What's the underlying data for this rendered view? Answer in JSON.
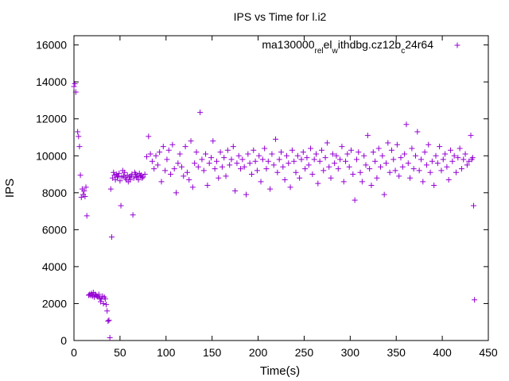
{
  "chart_data": {
    "type": "scatter",
    "title": "IPS vs Time for l.i2",
    "xlabel": "Time(s)",
    "ylabel": "IPS",
    "xlim": [
      0,
      450
    ],
    "ylim": [
      0,
      16500
    ],
    "xticks": [
      0,
      50,
      100,
      150,
      200,
      250,
      300,
      350,
      400,
      450
    ],
    "xtick_labels": [
      "0",
      "50",
      "100",
      "150",
      "200",
      "250",
      "300",
      "350",
      "400",
      "450"
    ],
    "yticks": [
      0,
      2000,
      4000,
      6000,
      8000,
      10000,
      12000,
      14000,
      16000
    ],
    "ytick_labels": [
      "0",
      "2000",
      "4000",
      "6000",
      "8000",
      "10000",
      "12000",
      "14000",
      "16000"
    ],
    "grid": false,
    "legend_position": "top-right",
    "marker": "+",
    "color": "#9400d3",
    "series": [
      {
        "name_parts": [
          {
            "text": "ma130000",
            "sub": false
          },
          {
            "text": "rel",
            "sub": true
          },
          {
            "text": "el",
            "sub": false
          },
          {
            "text": "w",
            "sub": true
          },
          {
            "text": "ithdbg.cz12b",
            "sub": false
          },
          {
            "text": "c",
            "sub": true
          },
          {
            "text": "24r64",
            "sub": false
          }
        ],
        "points": [
          [
            0,
            13750
          ],
          [
            1,
            13900
          ],
          [
            2,
            13450
          ],
          [
            4,
            11300
          ],
          [
            5,
            11050
          ],
          [
            6,
            10500
          ],
          [
            7,
            8950
          ],
          [
            8,
            7750
          ],
          [
            9,
            8200
          ],
          [
            10,
            7900
          ],
          [
            11,
            8100
          ],
          [
            12,
            7800
          ],
          [
            13,
            8300
          ],
          [
            14,
            6750
          ],
          [
            16,
            2450
          ],
          [
            17,
            2500
          ],
          [
            18,
            2450
          ],
          [
            19,
            2550
          ],
          [
            20,
            2400
          ],
          [
            21,
            2600
          ],
          [
            22,
            2350
          ],
          [
            23,
            2500
          ],
          [
            24,
            2450
          ],
          [
            25,
            2400
          ],
          [
            26,
            2350
          ],
          [
            27,
            2500
          ],
          [
            28,
            2300
          ],
          [
            29,
            2100
          ],
          [
            30,
            2250
          ],
          [
            31,
            2400
          ],
          [
            32,
            2000
          ],
          [
            33,
            2350
          ],
          [
            34,
            2250
          ],
          [
            35,
            1950
          ],
          [
            36,
            1600
          ],
          [
            37,
            1050
          ],
          [
            38,
            1100
          ],
          [
            39,
            150
          ],
          [
            40,
            8200
          ],
          [
            41,
            5600
          ],
          [
            42,
            8800
          ],
          [
            43,
            9100
          ],
          [
            44,
            8950
          ],
          [
            45,
            8700
          ],
          [
            46,
            9000
          ],
          [
            47,
            8850
          ],
          [
            48,
            8900
          ],
          [
            49,
            9050
          ],
          [
            50,
            8650
          ],
          [
            51,
            7300
          ],
          [
            52,
            8850
          ],
          [
            53,
            9200
          ],
          [
            54,
            8900
          ],
          [
            55,
            9100
          ],
          [
            56,
            8800
          ],
          [
            57,
            8700
          ],
          [
            58,
            8950
          ],
          [
            59,
            8600
          ],
          [
            60,
            8850
          ],
          [
            61,
            8700
          ],
          [
            62,
            8900
          ],
          [
            63,
            9000
          ],
          [
            64,
            6800
          ],
          [
            65,
            8800
          ],
          [
            66,
            9100
          ],
          [
            67,
            9000
          ],
          [
            68,
            8850
          ],
          [
            69,
            8900
          ],
          [
            70,
            8700
          ],
          [
            71,
            9050
          ],
          [
            72,
            8900
          ],
          [
            73,
            8950
          ],
          [
            74,
            8800
          ],
          [
            75,
            8850
          ],
          [
            77,
            9000
          ],
          [
            79,
            9950
          ],
          [
            81,
            11050
          ],
          [
            83,
            10100
          ],
          [
            85,
            9700
          ],
          [
            87,
            9300
          ],
          [
            89,
            10000
          ],
          [
            91,
            9500
          ],
          [
            93,
            10200
          ],
          [
            95,
            8600
          ],
          [
            97,
            10500
          ],
          [
            99,
            9200
          ],
          [
            101,
            9800
          ],
          [
            103,
            10300
          ],
          [
            105,
            9000
          ],
          [
            107,
            10600
          ],
          [
            109,
            9300
          ],
          [
            111,
            8000
          ],
          [
            113,
            9600
          ],
          [
            115,
            10100
          ],
          [
            117,
            9400
          ],
          [
            119,
            8900
          ],
          [
            121,
            10500
          ],
          [
            123,
            9100
          ],
          [
            125,
            8700
          ],
          [
            127,
            10800
          ],
          [
            129,
            8300
          ],
          [
            131,
            9600
          ],
          [
            133,
            10200
          ],
          [
            135,
            9400
          ],
          [
            137,
            12350
          ],
          [
            139,
            9800
          ],
          [
            141,
            9200
          ],
          [
            143,
            10100
          ],
          [
            145,
            8400
          ],
          [
            147,
            9600
          ],
          [
            149,
            9900
          ],
          [
            151,
            10800
          ],
          [
            153,
            9300
          ],
          [
            155,
            9700
          ],
          [
            157,
            8800
          ],
          [
            159,
            10200
          ],
          [
            161,
            9400
          ],
          [
            163,
            9900
          ],
          [
            165,
            8900
          ],
          [
            167,
            10300
          ],
          [
            169,
            9500
          ],
          [
            171,
            9800
          ],
          [
            173,
            10500
          ],
          [
            175,
            8100
          ],
          [
            177,
            9600
          ],
          [
            179,
            10000
          ],
          [
            181,
            9300
          ],
          [
            183,
            9800
          ],
          [
            185,
            9400
          ],
          [
            187,
            7900
          ],
          [
            189,
            10100
          ],
          [
            191,
            9600
          ],
          [
            193,
            9000
          ],
          [
            195,
            10300
          ],
          [
            197,
            9700
          ],
          [
            199,
            9200
          ],
          [
            201,
            10000
          ],
          [
            203,
            8600
          ],
          [
            205,
            9800
          ],
          [
            207,
            10400
          ],
          [
            209,
            9300
          ],
          [
            211,
            9700
          ],
          [
            213,
            8200
          ],
          [
            215,
            10100
          ],
          [
            217,
            9500
          ],
          [
            219,
            10900
          ],
          [
            221,
            9100
          ],
          [
            223,
            9800
          ],
          [
            225,
            10200
          ],
          [
            227,
            9400
          ],
          [
            229,
            8700
          ],
          [
            231,
            10000
          ],
          [
            233,
            9600
          ],
          [
            235,
            8300
          ],
          [
            237,
            10300
          ],
          [
            239,
            9700
          ],
          [
            241,
            9100
          ],
          [
            243,
            10000
          ],
          [
            245,
            8800
          ],
          [
            247,
            9800
          ],
          [
            249,
            10200
          ],
          [
            251,
            9300
          ],
          [
            253,
            9900
          ],
          [
            255,
            9500
          ],
          [
            257,
            10400
          ],
          [
            259,
            9000
          ],
          [
            261,
            9800
          ],
          [
            263,
            10100
          ],
          [
            265,
            8500
          ],
          [
            267,
            9700
          ],
          [
            269,
            10300
          ],
          [
            271,
            9200
          ],
          [
            273,
            9900
          ],
          [
            275,
            10700
          ],
          [
            277,
            9400
          ],
          [
            279,
            8800
          ],
          [
            281,
            10100
          ],
          [
            283,
            9600
          ],
          [
            285,
            10000
          ],
          [
            287,
            9300
          ],
          [
            289,
            9800
          ],
          [
            291,
            10500
          ],
          [
            293,
            8600
          ],
          [
            295,
            9700
          ],
          [
            297,
            10100
          ],
          [
            299,
            9400
          ],
          [
            301,
            10300
          ],
          [
            303,
            9000
          ],
          [
            305,
            7600
          ],
          [
            307,
            9800
          ],
          [
            309,
            10200
          ],
          [
            311,
            9100
          ],
          [
            313,
            8600
          ],
          [
            315,
            10000
          ],
          [
            317,
            9500
          ],
          [
            319,
            11100
          ],
          [
            321,
            9300
          ],
          [
            323,
            8400
          ],
          [
            325,
            10200
          ],
          [
            327,
            9700
          ],
          [
            329,
            8800
          ],
          [
            331,
            10400
          ],
          [
            333,
            9400
          ],
          [
            335,
            10000
          ],
          [
            337,
            7900
          ],
          [
            339,
            9600
          ],
          [
            341,
            10700
          ],
          [
            343,
            9100
          ],
          [
            345,
            10300
          ],
          [
            347,
            9800
          ],
          [
            349,
            9200
          ],
          [
            351,
            10600
          ],
          [
            353,
            8900
          ],
          [
            355,
            9900
          ],
          [
            357,
            9400
          ],
          [
            359,
            10100
          ],
          [
            361,
            11700
          ],
          [
            363,
            9600
          ],
          [
            365,
            8800
          ],
          [
            367,
            10400
          ],
          [
            369,
            9300
          ],
          [
            371,
            10000
          ],
          [
            373,
            11300
          ],
          [
            375,
            9200
          ],
          [
            377,
            9800
          ],
          [
            379,
            8600
          ],
          [
            381,
            10200
          ],
          [
            383,
            9500
          ],
          [
            385,
            10600
          ],
          [
            387,
            9100
          ],
          [
            389,
            9700
          ],
          [
            391,
            8400
          ],
          [
            393,
            10000
          ],
          [
            395,
            9600
          ],
          [
            397,
            10500
          ],
          [
            399,
            9200
          ],
          [
            401,
            9800
          ],
          [
            403,
            10100
          ],
          [
            405,
            9400
          ],
          [
            407,
            8700
          ],
          [
            409,
            10300
          ],
          [
            411,
            9700
          ],
          [
            413,
            10000
          ],
          [
            415,
            9100
          ],
          [
            417,
            9900
          ],
          [
            419,
            10400
          ],
          [
            421,
            9300
          ],
          [
            423,
            9800
          ],
          [
            425,
            10100
          ],
          [
            427,
            9500
          ],
          [
            429,
            9700
          ],
          [
            431,
            11100
          ],
          [
            432,
            9800
          ],
          [
            433,
            9900
          ],
          [
            434,
            7300
          ],
          [
            435,
            2200
          ]
        ]
      }
    ]
  }
}
